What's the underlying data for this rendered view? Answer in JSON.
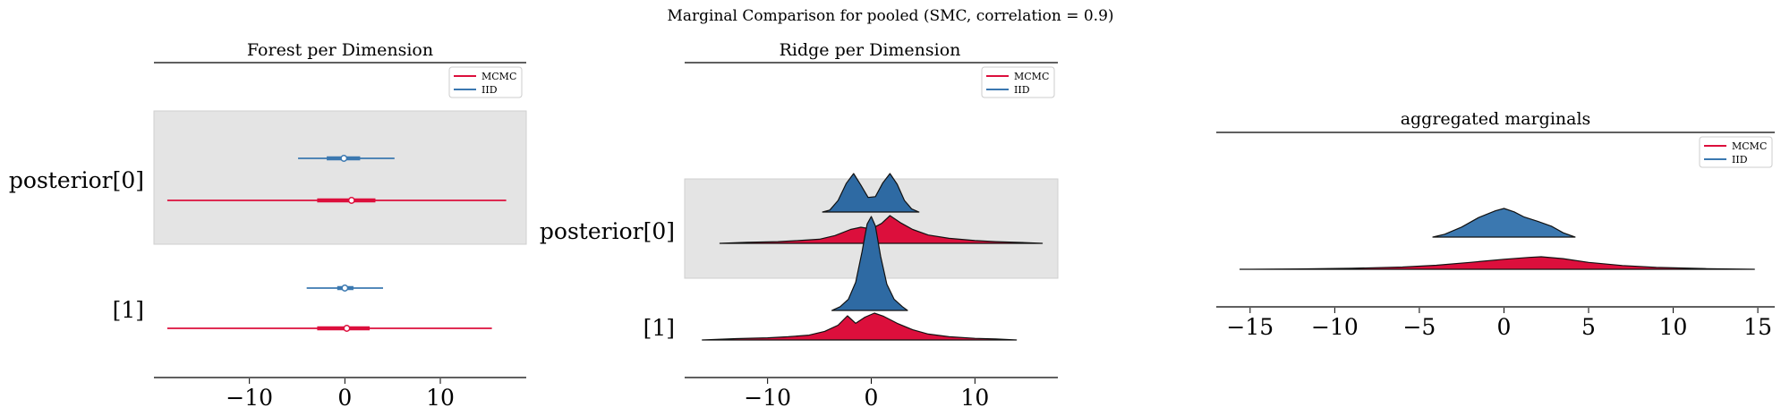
{
  "suptitle": "Marginal Comparison for pooled (SMC, correlation = 0.9)",
  "colors": {
    "mcmc": "#dc0f3c",
    "iid": "#3b78b0",
    "iid_dark": "#2e6aa3",
    "highlight": "#e4e4e4"
  },
  "chart_data": [
    {
      "type": "forest",
      "title": "Forest per Dimension",
      "xlim": [
        -20,
        19
      ],
      "xticks": [
        -10,
        0,
        10
      ],
      "xtick_labels": [
        "−10",
        "0",
        "10"
      ],
      "ytick_labels": [
        "posterior[0]",
        "[1]"
      ],
      "legend": {
        "placement": "top-right",
        "entries": [
          "MCMC",
          "IID"
        ]
      },
      "highlighted_row": "posterior[0]",
      "series": [
        {
          "name": "MCMC",
          "row": "posterior[0]",
          "hdi": [
            -18.6,
            16.9
          ],
          "iqr": [
            -2.9,
            3.2
          ],
          "median": 0.7
        },
        {
          "name": "IID",
          "row": "posterior[0]",
          "hdi": [
            -4.9,
            5.2
          ],
          "iqr": [
            -1.9,
            1.6
          ],
          "median": -0.1
        },
        {
          "name": "MCMC",
          "row": "[1]",
          "hdi": [
            -18.6,
            15.4
          ],
          "iqr": [
            -2.9,
            2.6
          ],
          "median": 0.2
        },
        {
          "name": "IID",
          "row": "[1]",
          "hdi": [
            -4.0,
            4.0
          ],
          "iqr": [
            -0.8,
            0.9
          ],
          "median": 0.0
        }
      ]
    },
    {
      "type": "ridgeplot",
      "title": "Ridge per Dimension",
      "xlim": [
        -18,
        18
      ],
      "xticks": [
        -10,
        0,
        10
      ],
      "xtick_labels": [
        "−10",
        "0",
        "10"
      ],
      "ytick_labels": [
        "posterior[0]",
        "[1]"
      ],
      "legend": {
        "placement": "top-right",
        "entries": [
          "MCMC",
          "IID"
        ]
      },
      "highlighted_row": "posterior[0]",
      "series": [
        {
          "name": "IID",
          "row": "posterior[0]",
          "x": [
            -4.7,
            -4.0,
            -3.2,
            -2.4,
            -1.7,
            -1.0,
            -0.3,
            0.4,
            1.1,
            1.8,
            2.5,
            3.2,
            3.9,
            4.6
          ],
          "density": [
            0.0,
            0.05,
            0.3,
            0.75,
            1.0,
            0.7,
            0.38,
            0.4,
            0.75,
            1.0,
            0.72,
            0.3,
            0.08,
            0.0
          ]
        },
        {
          "name": "MCMC",
          "row": "posterior[0]",
          "x": [
            -14.6,
            -12,
            -9,
            -7,
            -5,
            -3.5,
            -2,
            -1,
            0,
            1,
            1.8,
            2.8,
            4,
            5.5,
            7.5,
            10,
            12,
            14,
            16.5
          ],
          "density": [
            0.0,
            0.04,
            0.06,
            0.1,
            0.15,
            0.28,
            0.5,
            0.58,
            0.52,
            0.72,
            1.0,
            0.75,
            0.5,
            0.3,
            0.18,
            0.1,
            0.06,
            0.04,
            0.0
          ]
        },
        {
          "name": "IID",
          "row": "[1]",
          "x": [
            -3.8,
            -3.0,
            -2.2,
            -1.5,
            -0.9,
            -0.4,
            0.0,
            0.4,
            0.9,
            1.5,
            2.2,
            3.0,
            3.5
          ],
          "density": [
            0.0,
            0.04,
            0.12,
            0.3,
            0.62,
            0.92,
            1.0,
            0.9,
            0.58,
            0.28,
            0.12,
            0.04,
            0.0
          ]
        },
        {
          "name": "MCMC",
          "row": "[1]",
          "x": [
            -16.3,
            -13,
            -10,
            -8,
            -6,
            -4.5,
            -3.2,
            -2.3,
            -1.5,
            -0.6,
            0.3,
            1.2,
            2.5,
            4,
            5.5,
            7.5,
            10,
            12,
            14
          ],
          "density": [
            0.0,
            0.05,
            0.08,
            0.12,
            0.18,
            0.32,
            0.55,
            0.9,
            0.62,
            0.85,
            1.0,
            0.88,
            0.62,
            0.38,
            0.22,
            0.12,
            0.06,
            0.04,
            0.0
          ]
        }
      ]
    },
    {
      "type": "ridgeplot",
      "title": "aggregated marginals",
      "xlim": [
        -17,
        16
      ],
      "xticks": [
        -15,
        -10,
        -5,
        0,
        5,
        10,
        15
      ],
      "xtick_labels": [
        "−15",
        "−10",
        "−5",
        "0",
        "5",
        "10",
        "15"
      ],
      "ytick_labels": [],
      "legend": {
        "placement": "top-right",
        "entries": [
          "MCMC",
          "IID"
        ]
      },
      "series": [
        {
          "name": "IID",
          "x": [
            -4.2,
            -3.5,
            -2.5,
            -1.5,
            -0.5,
            0.0,
            0.6,
            1.2,
            2.0,
            2.8,
            3.5,
            4.2
          ],
          "density": [
            0.0,
            0.1,
            0.35,
            0.68,
            0.92,
            1.0,
            0.88,
            0.7,
            0.55,
            0.38,
            0.15,
            0.0
          ]
        },
        {
          "name": "MCMC",
          "x": [
            -15.6,
            -12,
            -9,
            -6,
            -4,
            -2,
            0,
            1.5,
            2.2,
            3.5,
            5,
            7,
            9,
            12,
            14.8
          ],
          "density": [
            0.0,
            0.03,
            0.08,
            0.18,
            0.32,
            0.55,
            0.8,
            0.95,
            1.0,
            0.85,
            0.55,
            0.3,
            0.15,
            0.05,
            0.0
          ]
        }
      ]
    }
  ]
}
